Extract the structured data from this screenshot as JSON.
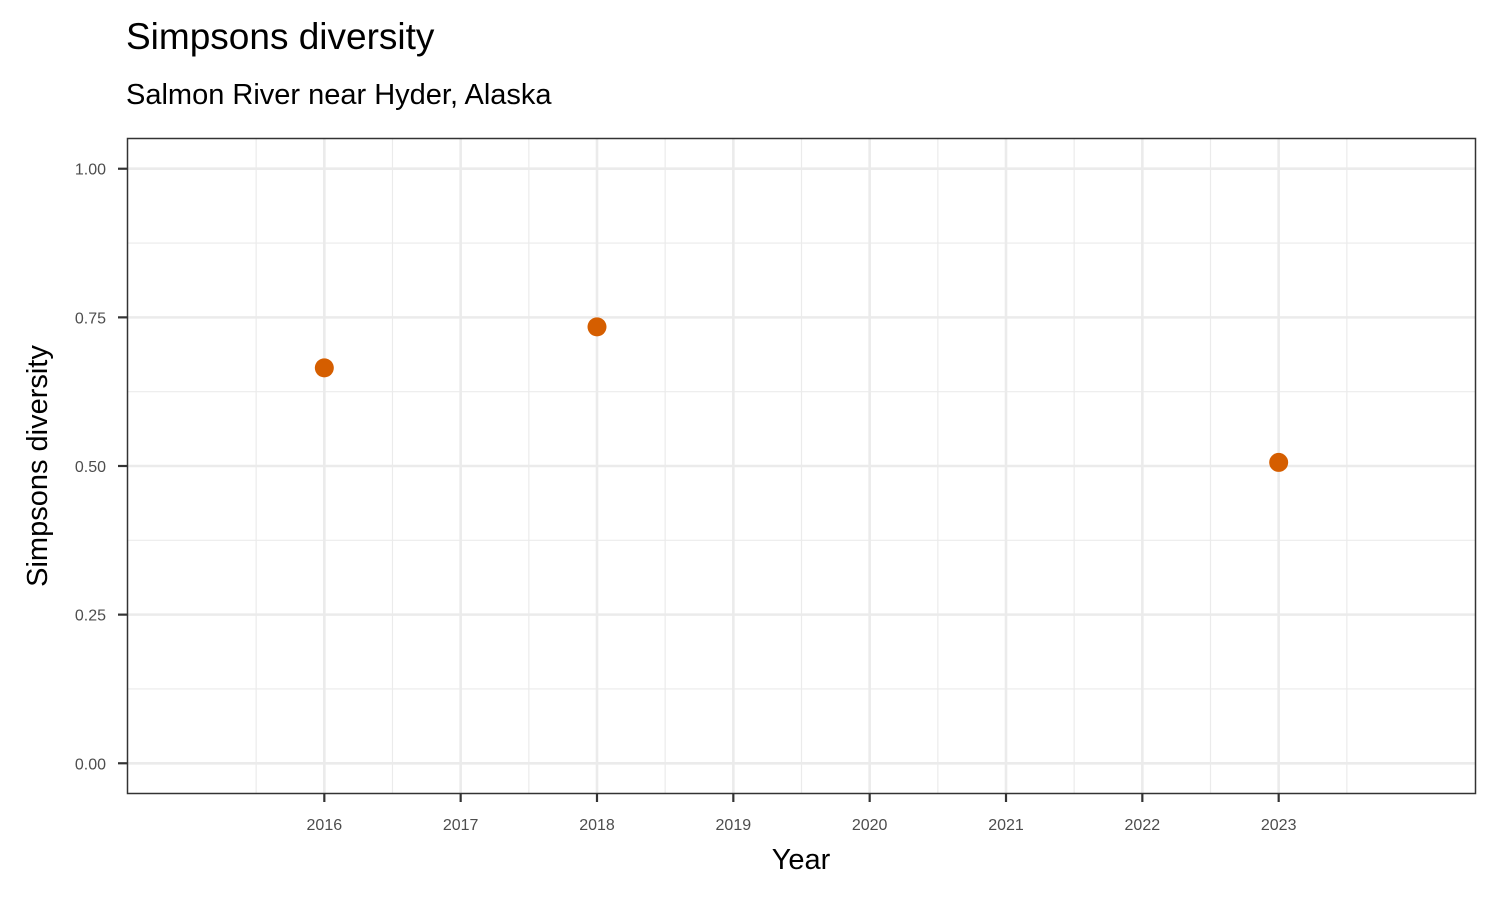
{
  "chart_data": {
    "type": "scatter",
    "title": "Simpsons diversity",
    "subtitle": "Salmon River near Hyder, Alaska",
    "xlabel": "Year",
    "ylabel": "Simpsons diversity",
    "x": [
      2016,
      2018,
      2023
    ],
    "y": [
      0.665,
      0.734,
      0.506
    ],
    "xlim": [
      2014.56,
      2024.44
    ],
    "ylim": [
      -0.05,
      1.05
    ],
    "x_ticks": [
      2016,
      2017,
      2018,
      2019,
      2020,
      2021,
      2022,
      2023
    ],
    "x_tick_labels": [
      "2016",
      "2017",
      "2018",
      "2019",
      "2020",
      "2021",
      "2022",
      "2023"
    ],
    "y_ticks": [
      0,
      0.25,
      0.5,
      0.75,
      1.0
    ],
    "y_tick_labels": [
      "0.00",
      "0.25",
      "0.50",
      "0.75",
      "1.00"
    ],
    "point_color": "#D55E00",
    "grid": true,
    "legend": "none"
  }
}
